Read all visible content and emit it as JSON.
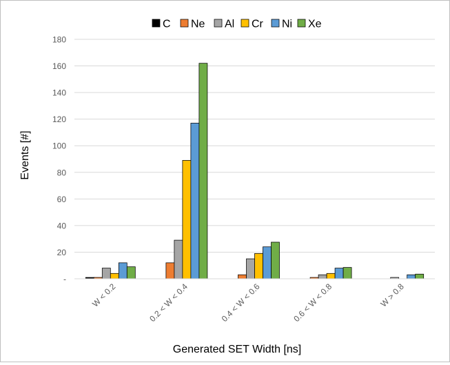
{
  "chart_data": {
    "type": "bar",
    "title": "",
    "xlabel": "Generated SET Width [ns]",
    "ylabel": "Events [#]",
    "ylim": [
      0,
      180
    ],
    "yticks": [
      "-",
      "20",
      "40",
      "60",
      "80",
      "100",
      "120",
      "140",
      "160",
      "180"
    ],
    "ytick_values": [
      0,
      20,
      40,
      60,
      80,
      100,
      120,
      140,
      160,
      180
    ],
    "grid": true,
    "legend_position": "top",
    "categories": [
      "W < 0.2",
      "0.2 < W < 0.4",
      "0.4 < W < 0.6",
      "0.6 < W < 0.8",
      "W > 0.8"
    ],
    "series": [
      {
        "name": "C",
        "color": "#000000",
        "values": [
          1,
          0,
          0,
          0,
          0
        ]
      },
      {
        "name": "Ne",
        "color": "#ed7d31",
        "values": [
          1,
          12,
          3,
          1,
          0
        ]
      },
      {
        "name": "Al",
        "color": "#a5a5a5",
        "values": [
          8,
          29,
          15,
          3,
          1
        ]
      },
      {
        "name": "Cr",
        "color": "#ffc000",
        "values": [
          4,
          89,
          19,
          4,
          0
        ]
      },
      {
        "name": "Ni",
        "color": "#5b9bd5",
        "values": [
          12,
          117,
          24,
          8,
          3
        ]
      },
      {
        "name": "Xe",
        "color": "#70ad47",
        "values": [
          9,
          162,
          27.5,
          8.5,
          3.5
        ]
      }
    ]
  }
}
